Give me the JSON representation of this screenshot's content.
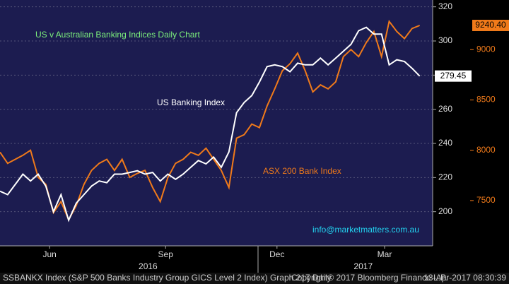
{
  "chart_data": {
    "type": "line",
    "title": "US v Australian Banking Indices Daily Chart",
    "annotations": {
      "us": "US Banking Index",
      "asx": "ASX 200 Bank Index",
      "contact": "info@marketmatters.com.au"
    },
    "xticks": [
      {
        "value": 6.5,
        "label": "Jun"
      },
      {
        "value": 21.7,
        "label": "Sep"
      },
      {
        "value": 36.3,
        "label": "Dec"
      },
      {
        "value": 50.4,
        "label": "Mar"
      }
    ],
    "year_ticks": [
      {
        "value": 19.4,
        "label": "2016"
      },
      {
        "value": 47.6,
        "label": "2017"
      }
    ],
    "xlim": [
      0,
      56.7
    ],
    "ylim": [
      180,
      324
    ],
    "yticks": [
      200,
      220,
      240,
      260,
      280,
      300,
      320
    ],
    "y2lim": [
      7050,
      9493
    ],
    "y2ticks": [
      7500,
      8000,
      8500,
      9000
    ],
    "grid": true,
    "series": [
      {
        "name": "US Banking Index",
        "color": "#ffffff",
        "values": [
          212,
          210,
          216,
          222,
          218,
          222,
          215,
          200,
          210,
          195,
          205,
          210,
          215,
          218,
          217,
          222,
          222,
          223,
          224,
          222,
          223,
          218,
          222,
          219,
          222,
          226,
          230,
          228,
          232,
          226,
          235,
          258,
          264,
          268,
          276,
          285,
          286,
          285,
          282,
          287,
          286,
          286,
          290,
          286,
          290,
          294,
          298,
          306,
          308,
          304,
          304,
          286,
          289,
          288,
          284,
          279.45
        ]
      },
      {
        "name": "ASX 200 Bank Index",
        "color": "#f07a1a",
        "axis": "y2",
        "values": [
          7980,
          7870,
          7910,
          7950,
          8000,
          7730,
          7660,
          7380,
          7490,
          7310,
          7450,
          7660,
          7800,
          7870,
          7910,
          7800,
          7910,
          7730,
          7770,
          7800,
          7630,
          7490,
          7730,
          7870,
          7910,
          7980,
          7950,
          8020,
          7910,
          7800,
          7630,
          8120,
          8155,
          8260,
          8225,
          8440,
          8610,
          8790,
          8860,
          8965,
          8790,
          8580,
          8650,
          8610,
          8680,
          8930,
          9000,
          8930,
          9070,
          9180,
          8930,
          9280,
          9180,
          9110,
          9210,
          9240.4
        ],
        "value_labels": [
          null,
          null,
          null,
          null,
          null,
          null,
          null,
          null,
          null,
          null,
          null,
          null,
          null,
          null,
          null,
          null,
          null,
          null,
          null,
          null,
          null,
          null,
          null,
          null,
          null,
          null,
          null,
          null,
          null,
          null,
          null,
          null,
          null,
          null,
          null,
          null,
          null,
          null,
          null,
          null,
          null,
          null,
          null,
          null,
          null,
          null,
          null,
          null,
          null,
          null,
          null,
          null,
          null,
          null,
          null,
          "9240.40"
        ]
      }
    ]
  },
  "footer": {
    "left": "SSBANKX Index (S&P 500 Banks Industry Group GICS Level 2 Index) Graph 217  Daily",
    "center": "Copyright© 2017 Bloomberg Finance L.P.",
    "right": "13-Apr-2017 08:30:39"
  }
}
